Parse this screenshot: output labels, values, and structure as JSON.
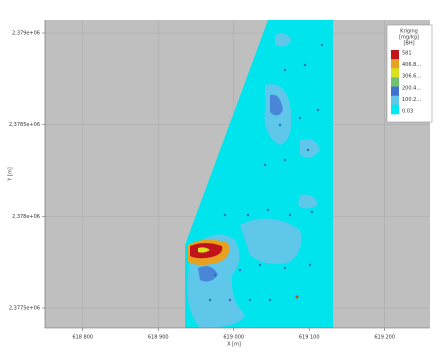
{
  "chart_data": {
    "type": "contour",
    "xlabel": "X [m]",
    "ylabel": "Y [m]",
    "xlim": [
      618750,
      619260
    ],
    "xticks": [
      {
        "value": 618800,
        "label": "618 800"
      },
      {
        "value": 618900,
        "label": "618 900"
      },
      {
        "value": 619000,
        "label": "619 000"
      },
      {
        "value": 619100,
        "label": "619 100"
      },
      {
        "value": 619200,
        "label": "619 200"
      }
    ],
    "ylim": [
      2377391,
      2379071
    ],
    "yticks": [
      {
        "value": 2379000,
        "label": "2,379e+06"
      },
      {
        "value": 2378500,
        "label": "2,3785e+06"
      },
      {
        "value": 2378000,
        "label": "2,378e+06"
      },
      {
        "value": 2377500,
        "label": "2,3775e+06"
      }
    ],
    "grid": true,
    "legend": {
      "title": [
        "Kriging",
        "[mg/kg]",
        "[BH]"
      ],
      "labels": [
        "581",
        "406.8...",
        "306.6...",
        "200.4...",
        "100.2...",
        "0.03"
      ],
      "colors": [
        "#c0141a",
        "#e8a020",
        "#d8e020",
        "#70c070",
        "#4070d0",
        "#60c8e8",
        "#00e8f0"
      ]
    }
  }
}
